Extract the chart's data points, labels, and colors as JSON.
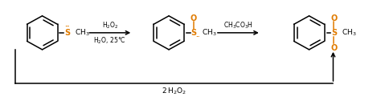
{
  "bg_color": "#ffffff",
  "molecule_color": "#e07b00",
  "text_color": "#000000",
  "arrow_color": "#000000",
  "fig_width": 4.74,
  "fig_height": 1.21,
  "dpi": 100,
  "arrow1_label_top": "H$_2$O$_2$",
  "arrow1_label_bot": "H$_2$O, 25°C",
  "arrow2_label_top": "CH$_3$CO$_3$H",
  "arrow3_label": "2 H$_2$O$_2$"
}
